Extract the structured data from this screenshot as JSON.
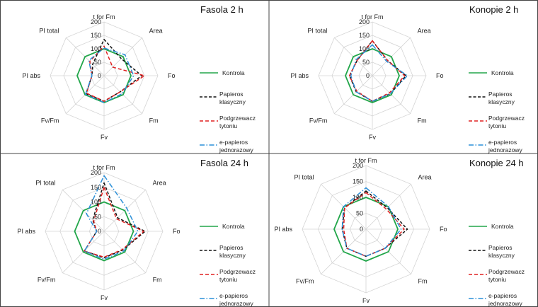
{
  "colors": {
    "Kontrola": "#22a64a",
    "Papieros klasyczny": "#111111",
    "Podgrzewacz tytoniu": "#e02020",
    "e-papieros jednorazowy": "#2a8fd8"
  },
  "axes": [
    "t for Fm",
    "Area",
    "Fo",
    "Fm",
    "Fv",
    "Fv/Fm",
    "PI abs",
    "PI total"
  ],
  "rticks": [
    "0",
    "50",
    "100",
    "150",
    "200"
  ],
  "chart_data": [
    {
      "type": "radar",
      "title": "Fasola 2 h",
      "rlim": [
        0,
        200
      ],
      "series": [
        {
          "name": "Kontrola",
          "values": [
            100,
            100,
            100,
            100,
            100,
            100,
            100,
            100
          ]
        },
        {
          "name": "Papieros klasyczny",
          "values": [
            135,
            90,
            140,
            85,
            95,
            95,
            45,
            60
          ]
        },
        {
          "name": "Podgrzewacz tytoniu",
          "values": [
            110,
            45,
            150,
            85,
            95,
            92,
            45,
            75
          ]
        },
        {
          "name": "e-papieros jednorazowy",
          "values": [
            103,
            110,
            110,
            95,
            100,
            98,
            45,
            80
          ]
        }
      ]
    },
    {
      "type": "radar",
      "title": "Konopie 2 h",
      "rlim": [
        0,
        200
      ],
      "series": [
        {
          "name": "Kontrola",
          "values": [
            100,
            100,
            100,
            100,
            100,
            100,
            100,
            100
          ]
        },
        {
          "name": "Papieros klasyczny",
          "values": [
            130,
            80,
            125,
            95,
            95,
            85,
            85,
            80
          ]
        },
        {
          "name": "Podgrzewacz tytoniu",
          "values": [
            130,
            80,
            120,
            90,
            95,
            82,
            85,
            80
          ]
        },
        {
          "name": "e-papieros jednorazowy",
          "values": [
            115,
            75,
            130,
            95,
            95,
            85,
            80,
            85
          ]
        }
      ]
    },
    {
      "type": "radar",
      "title": "Fasola 24 h",
      "rlim": [
        0,
        200
      ],
      "series": [
        {
          "name": "Kontrola",
          "values": [
            100,
            100,
            100,
            100,
            100,
            100,
            100,
            100
          ]
        },
        {
          "name": "Papieros klasyczny",
          "values": [
            165,
            65,
            140,
            90,
            90,
            95,
            25,
            55
          ]
        },
        {
          "name": "Podgrzewacz tytoniu",
          "values": [
            150,
            60,
            135,
            88,
            88,
            95,
            25,
            50
          ]
        },
        {
          "name": "e-papieros jednorazowy",
          "values": [
            190,
            110,
            115,
            95,
            95,
            95,
            25,
            85
          ]
        }
      ]
    },
    {
      "type": "radar",
      "title": "Konopie 24 h",
      "rlim": [
        0,
        200
      ],
      "series": [
        {
          "name": "Kontrola",
          "values": [
            100,
            100,
            100,
            100,
            100,
            100,
            100,
            100
          ]
        },
        {
          "name": "Papieros klasyczny",
          "values": [
            120,
            95,
            130,
            85,
            85,
            85,
            75,
            95
          ]
        },
        {
          "name": "Podgrzewacz tytoniu",
          "values": [
            115,
            90,
            120,
            85,
            85,
            85,
            70,
            95
          ]
        },
        {
          "name": "e-papieros jednorazowy",
          "values": [
            130,
            100,
            110,
            85,
            85,
            85,
            75,
            100
          ]
        }
      ]
    }
  ]
}
